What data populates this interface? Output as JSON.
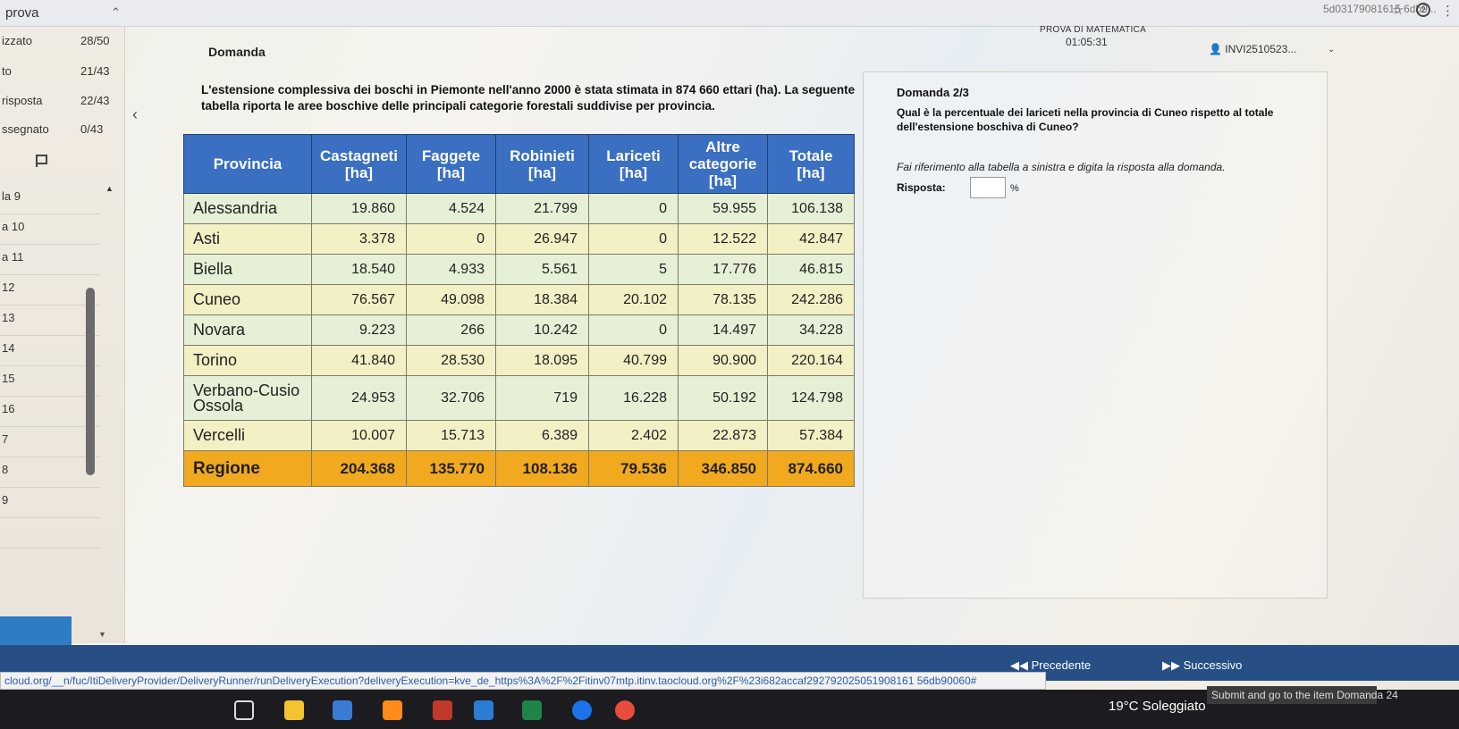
{
  "browser": {
    "tab_title": "prova",
    "url_fragment": "5d03179081615 6db9...",
    "star_icon": "star-icon",
    "menu_icon": "kebab-menu-icon"
  },
  "sidebar": {
    "stats": [
      {
        "label": "izzato",
        "value": "28/50"
      },
      {
        "label": "to",
        "value": "21/43"
      },
      {
        "label": "risposta",
        "value": "22/43"
      },
      {
        "label": "ssegnato",
        "value": "0/43"
      }
    ],
    "items": [
      "la 9",
      "a 10",
      "a 11",
      "12",
      "13",
      "14",
      "15",
      "16",
      "7",
      "8",
      "9",
      ""
    ]
  },
  "header": {
    "section_label": "Domanda",
    "exam_title": "PROVA DI MATEMATICA",
    "timer": "01:05:31",
    "user_id": "INVI2510523..."
  },
  "question": {
    "intro": "L'estensione complessiva dei boschi in Piemonte nell'anno 2000 è stata stimata in  874 660 ettari (ha). La seguente tabella riporta le aree boschive delle principali categorie forestali suddivise per provincia.",
    "number": "Domanda 2/3",
    "text": "Qual è la percentuale dei lariceti nella provincia di Cuneo rispetto al totale dell'estensione boschiva di Cuneo?",
    "hint": "Fai riferimento alla tabella a sinistra e digita la risposta alla domanda.",
    "answer_label": "Risposta:",
    "answer_value": "",
    "answer_unit": "%"
  },
  "table": {
    "headers": [
      "Provincia",
      "Castagneti [ha]",
      "Faggete [ha]",
      "Robinieti [ha]",
      "Lariceti [ha]",
      "Altre categorie [ha]",
      "Totale [ha]"
    ],
    "rows": [
      [
        "Alessandria",
        "19.860",
        "4.524",
        "21.799",
        "0",
        "59.955",
        "106.138"
      ],
      [
        "Asti",
        "3.378",
        "0",
        "26.947",
        "0",
        "12.522",
        "42.847"
      ],
      [
        "Biella",
        "18.540",
        "4.933",
        "5.561",
        "5",
        "17.776",
        "46.815"
      ],
      [
        "Cuneo",
        "76.567",
        "49.098",
        "18.384",
        "20.102",
        "78.135",
        "242.286"
      ],
      [
        "Novara",
        "9.223",
        "266",
        "10.242",
        "0",
        "14.497",
        "34.228"
      ],
      [
        "Torino",
        "41.840",
        "28.530",
        "18.095",
        "40.799",
        "90.900",
        "220.164"
      ],
      [
        "Verbano-Cusio Ossola",
        "24.953",
        "32.706",
        "719",
        "16.228",
        "50.192",
        "124.798"
      ],
      [
        "Vercelli",
        "10.007",
        "15.713",
        "6.389",
        "2.402",
        "22.873",
        "57.384"
      ],
      [
        "Regione",
        "204.368",
        "135.770",
        "108.136",
        "79.536",
        "346.850",
        "874.660"
      ]
    ]
  },
  "nav": {
    "prev_label": "Precedente",
    "next_label": "Successivo",
    "status_url": "cloud.org/__n/fuc/ItiDeliveryProvider/DeliveryRunner/runDeliveryExecution?deliveryExecution=kve_de_https%3A%2F%2Fitinv07mtp.itinv.taocloud.org%2F%23i682accaf292792025051908161 56db90060#",
    "submit_tip": "Submit and go to the item Domanda 24"
  },
  "taskbar": {
    "weather": "19°C  Soleggiato"
  },
  "colors": {
    "header_blue": "#3a6fc2",
    "row_green": "#e6f0d6",
    "row_yellow": "#f2f0c4",
    "total_orange": "#f1a91f",
    "nav_blue": "#274f85"
  }
}
